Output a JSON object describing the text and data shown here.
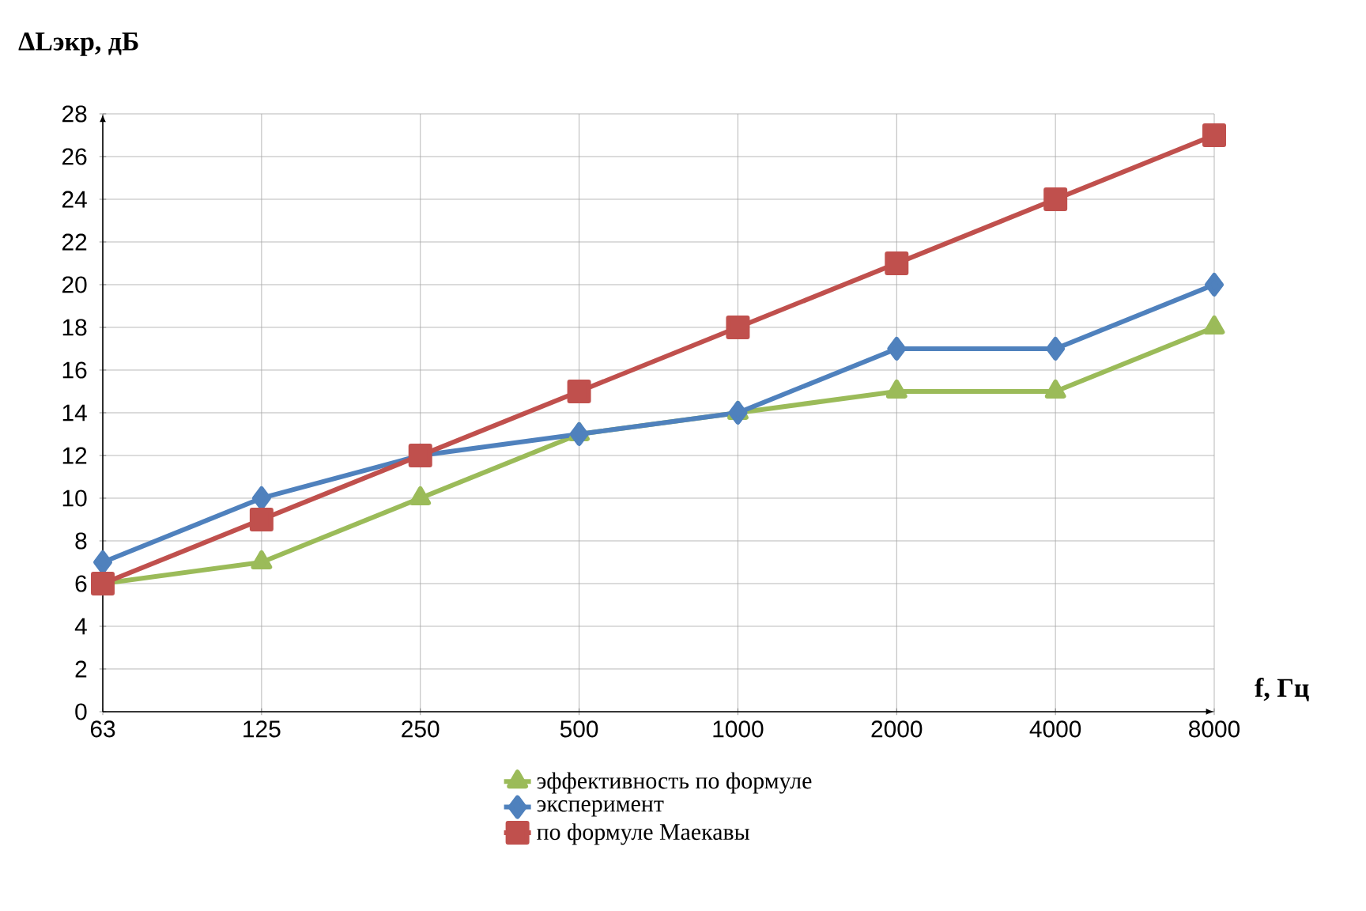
{
  "chart_data": {
    "type": "line",
    "xlabel": "f, Гц",
    "ylabel": "ΔLэкр, дБ",
    "categories": [
      "63",
      "125",
      "250",
      "500",
      "1000",
      "2000",
      "4000",
      "8000"
    ],
    "series": [
      {
        "name": "эффективность по формуле",
        "color": "#9bbb59",
        "marker": "triangle",
        "values": [
          6,
          7,
          10,
          13,
          14,
          15,
          15,
          18
        ]
      },
      {
        "name": "эксперимент",
        "color": "#4f81bd",
        "marker": "diamond",
        "values": [
          7,
          10,
          12,
          13,
          14,
          17,
          17,
          20
        ]
      },
      {
        "name": "по формуле Маекавы",
        "color": "#c0504d",
        "marker": "square",
        "values": [
          6,
          9,
          12,
          15,
          18,
          21,
          24,
          27
        ]
      }
    ],
    "ylim": [
      0,
      28
    ],
    "yticks": [
      0,
      2,
      4,
      6,
      8,
      10,
      12,
      14,
      16,
      18,
      20,
      22,
      24,
      26,
      28
    ],
    "grid": true,
    "legend": "bottom",
    "line_style": "solid"
  }
}
